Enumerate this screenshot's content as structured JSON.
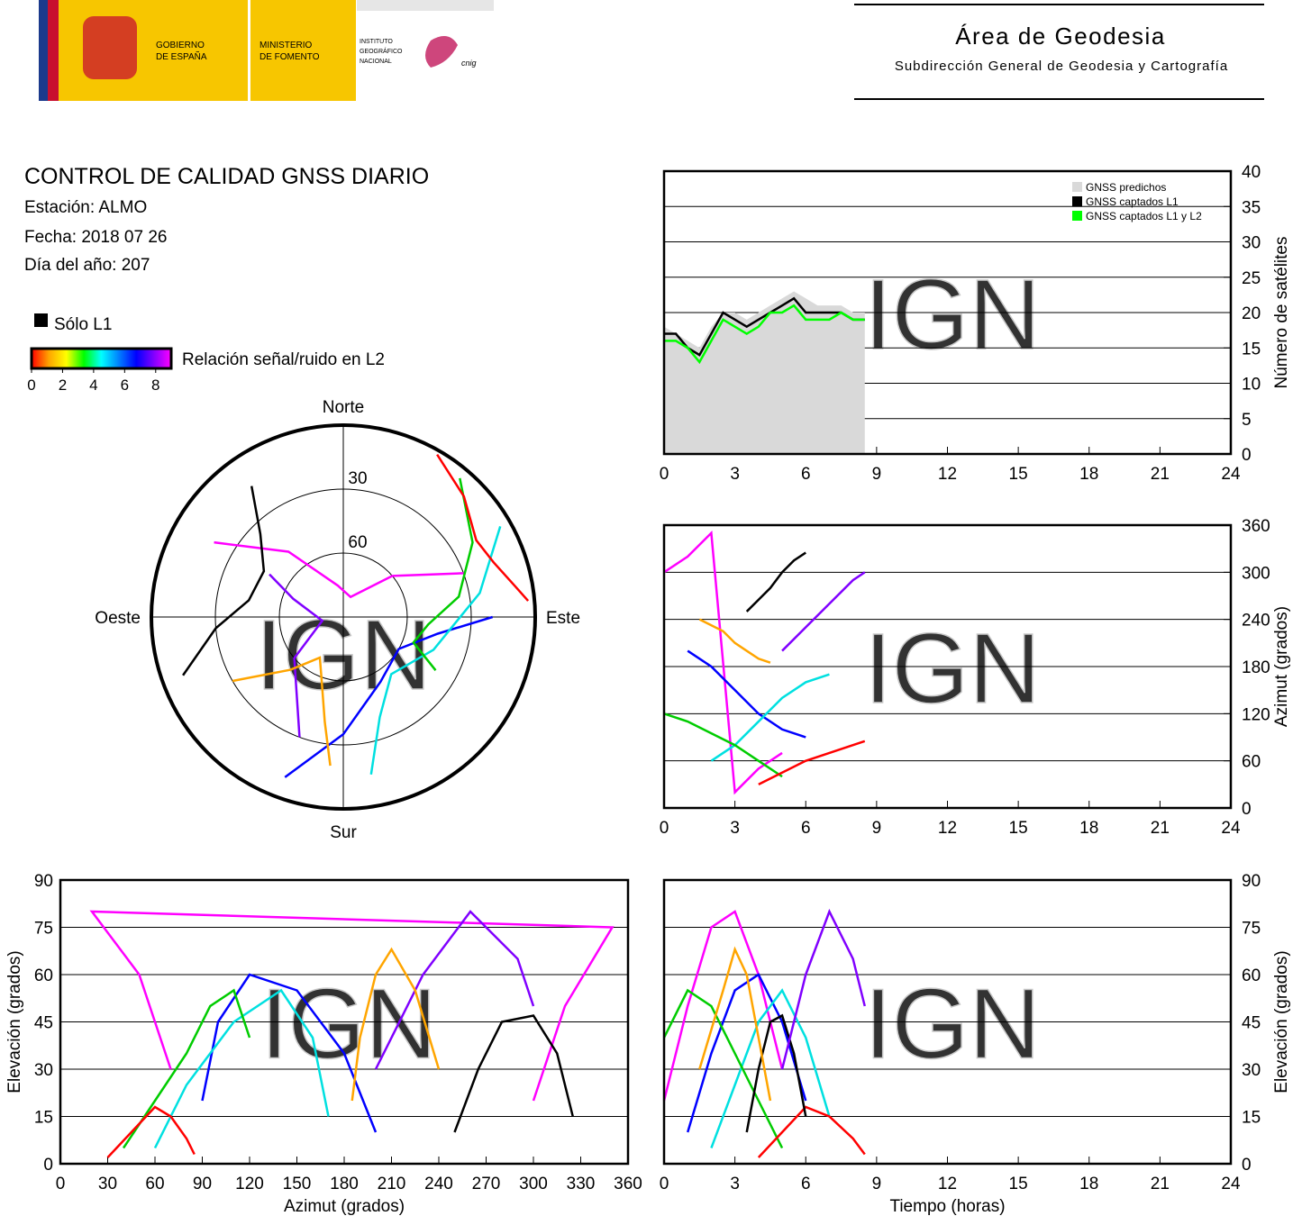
{
  "header": {
    "gov": [
      "GOBIERNO",
      "DE ESPAÑA"
    ],
    "ministry": [
      "MINISTERIO",
      "DE FOMENTO"
    ],
    "institute": [
      "INSTITUTO",
      "GEOGRÁFICO",
      "NACIONAL"
    ],
    "cnig": "cnig",
    "area": "Área de Geodesia",
    "subdirection": "Subdirección General de Geodesia y Cartografía"
  },
  "report": {
    "title": "CONTROL DE CALIDAD GNSS DIARIO",
    "station": "Estación: ALMO",
    "date": "Fecha: 2018 07 26",
    "doy": "Día del año: 207",
    "l1_only": "Sólo L1",
    "snr_label": "Relación señal/ruido en L2"
  },
  "snr_scale": {
    "lim": [
      0,
      9
    ],
    "ticks": [
      0,
      2,
      4,
      6,
      8
    ],
    "colors": [
      "#ff0000",
      "#ffa500",
      "#ffff00",
      "#00ff00",
      "#00ffff",
      "#0080ff",
      "#0000ff",
      "#8000ff",
      "#ff00ff"
    ]
  },
  "watermark": "IGN",
  "chart_data": [
    {
      "type": "line",
      "x": [
        0,
        0.5,
        1,
        1.5,
        2,
        2.5,
        3,
        3.5,
        4,
        4.5,
        5,
        5.5,
        6,
        6.5,
        7,
        7.5,
        8,
        8.5
      ],
      "series": [
        {
          "name": "GNSS predichos",
          "color": "#d9d9d9",
          "style": "area",
          "values": [
            18,
            17,
            16,
            15,
            18,
            20,
            20,
            19,
            20,
            21,
            22,
            23,
            22,
            21,
            21,
            21,
            20,
            20
          ]
        },
        {
          "name": "GNSS captados L1",
          "color": "#000000",
          "values": [
            17,
            17,
            15,
            14,
            17,
            20,
            19,
            18,
            19,
            20,
            21,
            22,
            20,
            20,
            20,
            20,
            19,
            19
          ]
        },
        {
          "name": "GNSS captados L1 y L2",
          "color": "#00ff00",
          "values": [
            16,
            16,
            15,
            13,
            16,
            19,
            18,
            17,
            18,
            20,
            20,
            21,
            19,
            19,
            19,
            20,
            19,
            19
          ]
        }
      ],
      "xlim": [
        0,
        24
      ],
      "xticks": [
        0,
        3,
        6,
        9,
        12,
        15,
        18,
        21,
        24
      ],
      "ylim": [
        0,
        40
      ],
      "yticks": [
        0,
        5,
        10,
        15,
        20,
        25,
        30,
        35,
        40
      ],
      "y_label": "Número de satélites",
      "y_axis_side": "right",
      "grid": true,
      "legend": "top-right"
    },
    {
      "type": "line",
      "series": [
        {
          "color": "#ff00ff",
          "x": [
            0,
            1,
            2,
            3,
            4,
            5
          ],
          "values": [
            300,
            320,
            350,
            20,
            50,
            70
          ]
        },
        {
          "color": "#0000ff",
          "x": [
            1,
            2,
            3,
            4,
            5,
            6
          ],
          "values": [
            200,
            180,
            150,
            120,
            100,
            90
          ]
        },
        {
          "color": "#00e0e0",
          "x": [
            2,
            3,
            4,
            5,
            6,
            7
          ],
          "values": [
            60,
            80,
            110,
            140,
            160,
            170
          ]
        },
        {
          "color": "#00cc00",
          "x": [
            0,
            1,
            2,
            3,
            4,
            5
          ],
          "values": [
            120,
            110,
            95,
            80,
            60,
            40
          ]
        },
        {
          "color": "#ff0000",
          "x": [
            4,
            5,
            6,
            7,
            8,
            8.5
          ],
          "values": [
            30,
            45,
            60,
            70,
            80,
            85
          ]
        },
        {
          "color": "#000000",
          "x": [
            3.5,
            4,
            4.5,
            5,
            5.5,
            6
          ],
          "values": [
            250,
            265,
            280,
            300,
            315,
            325
          ]
        },
        {
          "color": "#8000ff",
          "x": [
            5,
            6,
            7,
            8,
            8.5
          ],
          "values": [
            200,
            230,
            260,
            290,
            300
          ]
        },
        {
          "color": "#ffa500",
          "x": [
            1.5,
            2.5,
            3,
            3.5,
            4,
            4.5
          ],
          "values": [
            240,
            225,
            210,
            200,
            190,
            185
          ]
        }
      ],
      "xlim": [
        0,
        24
      ],
      "xticks": [
        0,
        3,
        6,
        9,
        12,
        15,
        18,
        21,
        24
      ],
      "ylim": [
        0,
        360
      ],
      "yticks": [
        0,
        60,
        120,
        180,
        240,
        300,
        360
      ],
      "y_label": "Azimut (grados)",
      "y_axis_side": "right",
      "grid": true
    },
    {
      "type": "polar",
      "directions": [
        {
          "label": "Norte",
          "azimuth": 0
        },
        {
          "label": "Este",
          "azimuth": 90
        },
        {
          "label": "Sur",
          "azimuth": 180
        },
        {
          "label": "Oeste",
          "azimuth": 270
        }
      ],
      "rlim": [
        90,
        0
      ],
      "rticks": [
        30,
        60
      ],
      "series": [
        {
          "color": "#ff00ff",
          "azimuth": [
            300,
            320,
            350,
            20,
            50,
            70
          ],
          "elevation": [
            20,
            50,
            75,
            80,
            60,
            30
          ]
        },
        {
          "color": "#0000ff",
          "azimuth": [
            200,
            180,
            150,
            120,
            100,
            90
          ],
          "elevation": [
            10,
            35,
            55,
            60,
            45,
            20
          ]
        },
        {
          "color": "#00e0e0",
          "azimuth": [
            60,
            80,
            110,
            140,
            160,
            170
          ],
          "elevation": [
            5,
            25,
            45,
            55,
            40,
            15
          ]
        },
        {
          "color": "#00cc00",
          "azimuth": [
            120,
            110,
            95,
            80,
            60,
            40
          ],
          "elevation": [
            40,
            55,
            50,
            35,
            20,
            5
          ]
        },
        {
          "color": "#ff0000",
          "azimuth": [
            30,
            45,
            60,
            70,
            80,
            85
          ],
          "elevation": [
            2,
            10,
            18,
            15,
            8,
            3
          ]
        },
        {
          "color": "#000000",
          "azimuth": [
            250,
            265,
            280,
            300,
            315,
            325
          ],
          "elevation": [
            10,
            30,
            45,
            47,
            35,
            15
          ]
        },
        {
          "color": "#8000ff",
          "azimuth": [
            200,
            230,
            260,
            290,
            300
          ],
          "elevation": [
            30,
            60,
            80,
            65,
            50
          ]
        },
        {
          "color": "#ffa500",
          "azimuth": [
            240,
            225,
            210,
            200,
            190,
            185
          ],
          "elevation": [
            30,
            55,
            68,
            60,
            40,
            20
          ]
        }
      ]
    },
    {
      "type": "line",
      "series": [
        {
          "color": "#ff00ff",
          "x": [
            300,
            320,
            350,
            20,
            50,
            70
          ],
          "values": [
            20,
            50,
            75,
            80,
            60,
            30
          ]
        },
        {
          "color": "#0000ff",
          "x": [
            200,
            180,
            150,
            120,
            100,
            90
          ],
          "values": [
            10,
            35,
            55,
            60,
            45,
            20
          ]
        },
        {
          "color": "#00e0e0",
          "x": [
            60,
            80,
            110,
            140,
            160,
            170
          ],
          "values": [
            5,
            25,
            45,
            55,
            40,
            15
          ]
        },
        {
          "color": "#00cc00",
          "x": [
            120,
            110,
            95,
            80,
            60,
            40
          ],
          "values": [
            40,
            55,
            50,
            35,
            20,
            5
          ]
        },
        {
          "color": "#ff0000",
          "x": [
            30,
            45,
            60,
            70,
            80,
            85
          ],
          "values": [
            2,
            10,
            18,
            15,
            8,
            3
          ]
        },
        {
          "color": "#000000",
          "x": [
            250,
            265,
            280,
            300,
            315,
            325
          ],
          "values": [
            10,
            30,
            45,
            47,
            35,
            15
          ]
        },
        {
          "color": "#8000ff",
          "x": [
            200,
            230,
            260,
            290,
            300
          ],
          "values": [
            30,
            60,
            80,
            65,
            50
          ]
        },
        {
          "color": "#ffa500",
          "x": [
            240,
            225,
            210,
            200,
            190,
            185
          ],
          "values": [
            30,
            55,
            68,
            60,
            40,
            20
          ]
        }
      ],
      "xlim": [
        0,
        360
      ],
      "xticks": [
        0,
        30,
        60,
        90,
        120,
        150,
        180,
        210,
        240,
        270,
        300,
        330,
        360
      ],
      "ylim": [
        0,
        90
      ],
      "yticks": [
        0,
        15,
        30,
        45,
        60,
        75,
        90
      ],
      "x_label": "Azimut (grados)",
      "y_label": "Elevación (grados)",
      "y_axis_side": "left",
      "grid": true
    },
    {
      "type": "line",
      "series": [
        {
          "color": "#ff00ff",
          "x": [
            0,
            1,
            2,
            3,
            4,
            5
          ],
          "values": [
            20,
            50,
            75,
            80,
            60,
            30
          ]
        },
        {
          "color": "#0000ff",
          "x": [
            1,
            2,
            3,
            4,
            5,
            6
          ],
          "values": [
            10,
            35,
            55,
            60,
            45,
            20
          ]
        },
        {
          "color": "#00e0e0",
          "x": [
            2,
            3,
            4,
            5,
            6,
            7
          ],
          "values": [
            5,
            25,
            45,
            55,
            40,
            15
          ]
        },
        {
          "color": "#00cc00",
          "x": [
            0,
            1,
            2,
            3,
            4,
            5
          ],
          "values": [
            40,
            55,
            50,
            35,
            20,
            5
          ]
        },
        {
          "color": "#ff0000",
          "x": [
            4,
            5,
            6,
            7,
            8,
            8.5
          ],
          "values": [
            2,
            10,
            18,
            15,
            8,
            3
          ]
        },
        {
          "color": "#000000",
          "x": [
            3.5,
            4,
            4.5,
            5,
            5.5,
            6
          ],
          "values": [
            10,
            30,
            45,
            47,
            35,
            15
          ]
        },
        {
          "color": "#8000ff",
          "x": [
            5,
            6,
            7,
            8,
            8.5
          ],
          "values": [
            30,
            60,
            80,
            65,
            50
          ]
        },
        {
          "color": "#ffa500",
          "x": [
            1.5,
            2.5,
            3,
            3.5,
            4,
            4.5
          ],
          "values": [
            30,
            55,
            68,
            60,
            40,
            20
          ]
        }
      ],
      "xlim": [
        0,
        24
      ],
      "xticks": [
        0,
        3,
        6,
        9,
        12,
        15,
        18,
        21,
        24
      ],
      "ylim": [
        0,
        90
      ],
      "yticks": [
        0,
        15,
        30,
        45,
        60,
        75,
        90
      ],
      "x_label": "Tiempo (horas)",
      "y_label": "Elevación (grados)",
      "y_axis_side": "right",
      "grid": true
    }
  ]
}
